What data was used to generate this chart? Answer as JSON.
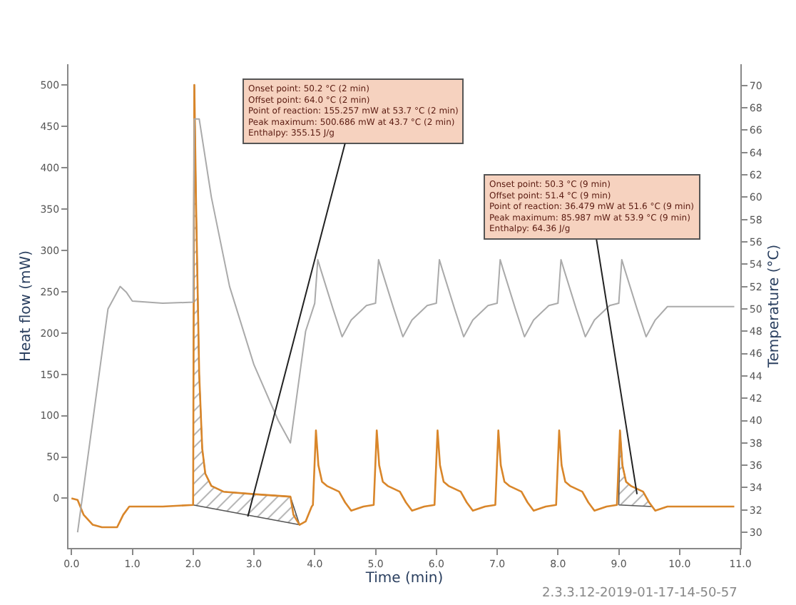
{
  "chart_data": {
    "type": "line",
    "xlabel": "Time (min)",
    "ylabel": "Heat flow (mW)",
    "y2label": "Temperature (°C)",
    "xlim": [
      -0.05,
      11.0
    ],
    "xticks": [
      {
        "value": 0,
        "label": "0.0"
      },
      {
        "value": 1,
        "label": "1.0"
      },
      {
        "value": 2,
        "label": "2.0"
      },
      {
        "value": 3,
        "label": "3.0"
      },
      {
        "value": 4,
        "label": "4.0"
      },
      {
        "value": 5,
        "label": "5.0"
      },
      {
        "value": 6,
        "label": "6.0"
      },
      {
        "value": 7,
        "label": "7.0"
      },
      {
        "value": 8,
        "label": "8.0"
      },
      {
        "value": 9,
        "label": "9.0"
      },
      {
        "value": 10,
        "label": "10.0"
      },
      {
        "value": 11,
        "label": "11.0"
      }
    ],
    "ylim": [
      -60,
      525
    ],
    "yticks": [
      0,
      50,
      100,
      150,
      200,
      250,
      300,
      350,
      400,
      450,
      500
    ],
    "y2lim": [
      28.6,
      71.9
    ],
    "y2ticks": [
      30,
      32,
      34,
      36,
      38,
      40,
      42,
      44,
      46,
      48,
      50,
      52,
      54,
      56,
      58,
      60,
      62,
      64,
      66,
      68,
      70
    ],
    "marker": "none",
    "series": [
      {
        "color": "#d9862a",
        "x": [
          0.0,
          0.1,
          0.2,
          0.35,
          0.5,
          0.75,
          0.85,
          0.95,
          1.5,
          2.0,
          2.02,
          2.05,
          2.1,
          2.15,
          2.2,
          2.3,
          2.5,
          3.0,
          3.6,
          3.65,
          3.75,
          3.85,
          3.95,
          3.97,
          4.02,
          4.06,
          4.12,
          4.2,
          4.4,
          4.5,
          4.6,
          4.8,
          4.97,
          5.02,
          5.06,
          5.12,
          5.2,
          5.4,
          5.5,
          5.6,
          5.8,
          5.97,
          6.02,
          6.06,
          6.12,
          6.2,
          6.4,
          6.5,
          6.6,
          6.8,
          6.97,
          7.02,
          7.06,
          7.12,
          7.2,
          7.4,
          7.5,
          7.6,
          7.8,
          7.97,
          8.02,
          8.06,
          8.12,
          8.2,
          8.4,
          8.5,
          8.6,
          8.8,
          8.97,
          9.02,
          9.06,
          9.12,
          9.2,
          9.4,
          9.5,
          9.6,
          9.8,
          10.0,
          10.9
        ],
        "values": [
          0,
          -2,
          -20,
          -32,
          -35,
          -35,
          -20,
          -10,
          -10,
          -8,
          500,
          350,
          150,
          60,
          30,
          15,
          8,
          5,
          2,
          -20,
          -32,
          -28,
          -10,
          -8,
          82,
          40,
          20,
          15,
          8,
          -5,
          -15,
          -10,
          -8,
          82,
          40,
          20,
          15,
          8,
          -5,
          -15,
          -10,
          -8,
          82,
          40,
          20,
          15,
          8,
          -5,
          -15,
          -10,
          -8,
          82,
          40,
          20,
          15,
          8,
          -5,
          -15,
          -10,
          -8,
          82,
          40,
          20,
          15,
          8,
          -5,
          -15,
          -10,
          -8,
          82,
          40,
          20,
          15,
          8,
          -5,
          -15,
          -10,
          -10,
          -10
        ]
      },
      {
        "color": "#aaaaaa",
        "axis": "y2",
        "x": [
          0.1,
          0.3,
          0.6,
          0.8,
          0.9,
          1.0,
          1.5,
          2.0,
          2.02,
          2.1,
          2.3,
          2.6,
          3.0,
          3.4,
          3.6,
          3.7,
          3.85,
          4.0,
          4.05,
          4.1,
          4.3,
          4.45,
          4.6,
          4.85,
          5.0,
          5.05,
          5.1,
          5.3,
          5.45,
          5.6,
          5.85,
          6.0,
          6.05,
          6.1,
          6.3,
          6.45,
          6.6,
          6.85,
          7.0,
          7.05,
          7.1,
          7.3,
          7.45,
          7.6,
          7.85,
          8.0,
          8.05,
          8.1,
          8.3,
          8.45,
          8.6,
          8.85,
          9.0,
          9.05,
          9.1,
          9.3,
          9.45,
          9.6,
          9.8,
          10.9
        ],
        "values": [
          30,
          38,
          50,
          52,
          51.5,
          50.7,
          50.5,
          50.6,
          67,
          67,
          60,
          52,
          45,
          40,
          38,
          42,
          48,
          50.5,
          54.4,
          53.5,
          50,
          47.5,
          49,
          50.3,
          50.5,
          54.4,
          53.5,
          50,
          47.5,
          49,
          50.3,
          50.5,
          54.4,
          53.5,
          50,
          47.5,
          49,
          50.3,
          50.5,
          54.4,
          53.5,
          50,
          47.5,
          49,
          50.3,
          50.5,
          54.4,
          53.5,
          50,
          47.5,
          49,
          50.3,
          50.5,
          54.4,
          53.5,
          50,
          47.5,
          49,
          50.2,
          50.2
        ]
      },
      {
        "type": "area",
        "color": "#555555",
        "x": [
          2.0,
          2.02,
          2.05,
          2.1,
          2.15,
          2.2,
          2.3,
          2.5,
          3.0,
          3.6,
          3.75
        ],
        "values": [
          -8,
          500,
          350,
          150,
          60,
          30,
          15,
          8,
          5,
          2,
          -32
        ]
      },
      {
        "type": "area",
        "color": "#555555",
        "x": [
          9.0,
          9.02,
          9.06,
          9.12,
          9.2,
          9.4,
          9.5,
          9.55
        ],
        "values": [
          -8,
          82,
          40,
          20,
          15,
          8,
          -5,
          -10
        ]
      }
    ],
    "annotations": [
      {
        "text": "Onset point: 50.2 °C (2 min)\nOffset point: 64.0 °C (2 min)\nPoint of reaction: 155.257 mW at 53.7 °C (2 min)\nPeak maximum: 500.686 mW at 43.7 °C (2 min)\nEnthalpy: 355.15 J/g",
        "x": 2.9,
        "y": -22
      },
      {
        "text": "Onset point: 50.3 °C (9 min)\nOffset point: 51.4 °C (9 min)\nPoint of reaction: 36.479 mW at 51.6 °C (9 min)\nPeak maximum: 85.987 mW at 53.9 °C (9 min)\nEnthalpy: 64.36 J/g",
        "x": 9.3,
        "y": 5
      },
      "2.3.3.12-2019-01-17-14-50-57"
    ]
  }
}
